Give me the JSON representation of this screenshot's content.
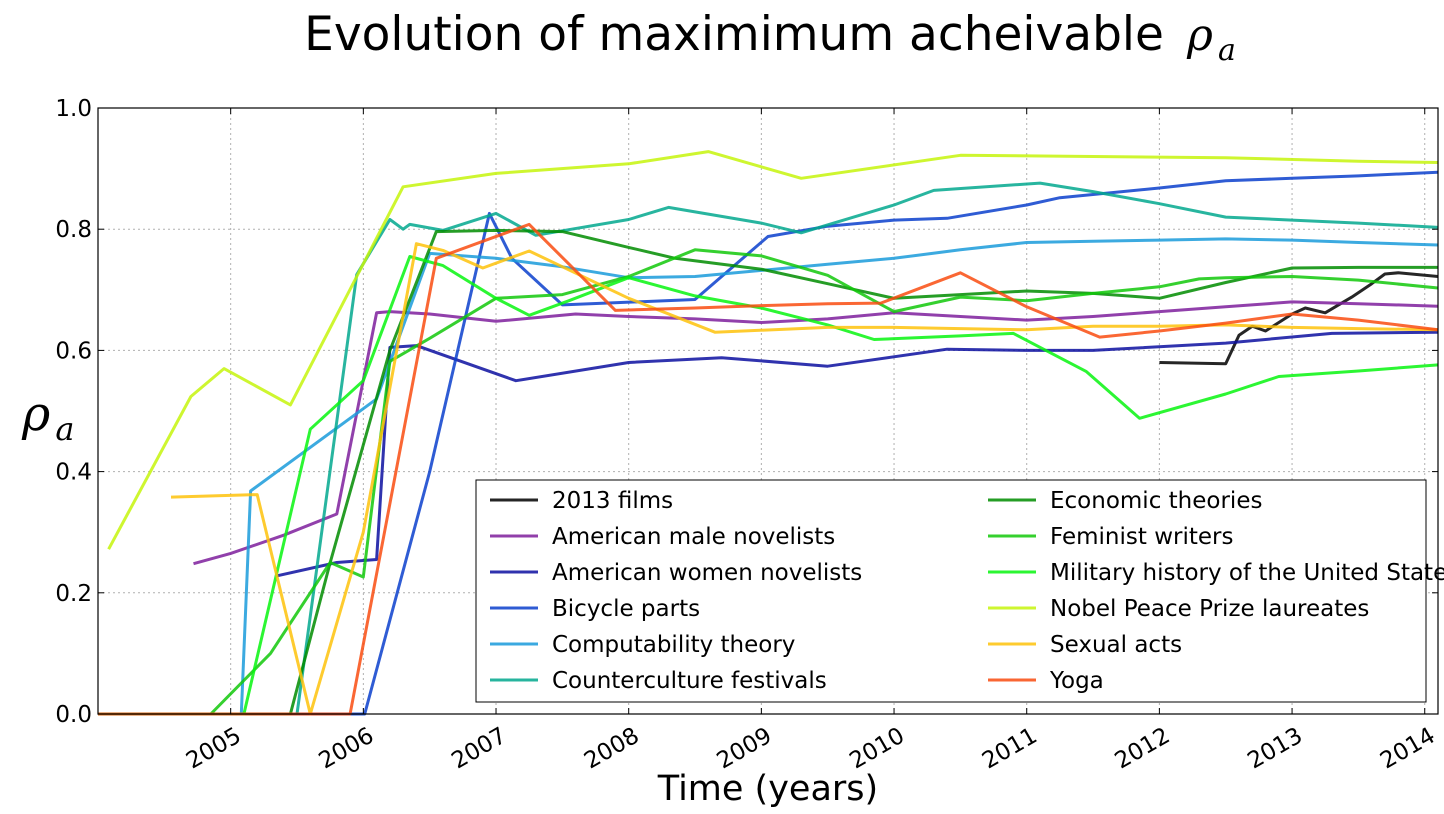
{
  "chart_data": {
    "type": "line",
    "title": "Evolution of maximimum acheivable",
    "title_symbol": "ρ",
    "title_symbol_sub": "a",
    "xlabel": "Time (years)",
    "ylabel_symbol": "ρ",
    "ylabel_symbol_sub": "a",
    "xlim": [
      2004.0,
      2014.1
    ],
    "ylim": [
      0.0,
      1.0
    ],
    "xticks": [
      2005,
      2006,
      2007,
      2008,
      2009,
      2010,
      2011,
      2012,
      2013,
      2014
    ],
    "xtick_labels": [
      "2005",
      "2006",
      "2007",
      "2008",
      "2009",
      "2010",
      "2011",
      "2012",
      "2013",
      "2014"
    ],
    "yticks": [
      0.0,
      0.2,
      0.4,
      0.6,
      0.8,
      1.0
    ],
    "ytick_labels": [
      "0.0",
      "0.2",
      "0.4",
      "0.6",
      "0.8",
      "1.0"
    ],
    "grid": true,
    "legend_position": "bottom-right",
    "legend_columns": 2,
    "series": [
      {
        "name": "2013 films",
        "color": "#000000",
        "x": [
          2012.0,
          2012.5,
          2012.6,
          2012.7,
          2012.8,
          2013.0,
          2013.1,
          2013.25,
          2013.45,
          2013.6,
          2013.7,
          2013.8,
          2014.1
        ],
        "y": [
          0.58,
          0.578,
          0.625,
          0.64,
          0.632,
          0.66,
          0.67,
          0.662,
          0.688,
          0.71,
          0.726,
          0.728,
          0.722
        ]
      },
      {
        "name": "American male novelists",
        "color": "#7e1e9c",
        "x": [
          2004.72,
          2005.0,
          2005.4,
          2005.8,
          2006.1,
          2006.2,
          2006.5,
          2007.0,
          2007.6,
          2008.0,
          2008.5,
          2009.0,
          2009.5,
          2010.0,
          2010.5,
          2011.0,
          2011.5,
          2012.0,
          2012.5,
          2013.0,
          2013.5,
          2014.1
        ],
        "y": [
          0.248,
          0.265,
          0.295,
          0.33,
          0.662,
          0.664,
          0.66,
          0.648,
          0.66,
          0.656,
          0.652,
          0.646,
          0.652,
          0.662,
          0.656,
          0.65,
          0.656,
          0.664,
          0.672,
          0.68,
          0.677,
          0.673
        ]
      },
      {
        "name": "American women novelists",
        "color": "#0c0fa0",
        "x": [
          2005.35,
          2005.8,
          2006.1,
          2006.2,
          2006.4,
          2007.15,
          2008.0,
          2008.7,
          2009.5,
          2010.4,
          2011.0,
          2011.5,
          2012.5,
          2013.3,
          2014.1
        ],
        "y": [
          0.228,
          0.25,
          0.255,
          0.605,
          0.608,
          0.55,
          0.58,
          0.588,
          0.574,
          0.602,
          0.6,
          0.6,
          0.612,
          0.628,
          0.63
        ]
      },
      {
        "name": "Bicycle parts",
        "color": "#0b3fcc",
        "x": [
          2004.0,
          2005.0,
          2006.01,
          2006.5,
          2006.95,
          2007.12,
          2007.5,
          2008.5,
          2009.05,
          2009.5,
          2010.0,
          2010.4,
          2011.0,
          2011.25,
          2012.0,
          2012.5,
          2013.0,
          2013.5,
          2014.1
        ],
        "y": [
          0.0,
          0.0,
          0.0,
          0.4,
          0.826,
          0.752,
          0.675,
          0.684,
          0.788,
          0.805,
          0.815,
          0.818,
          0.84,
          0.852,
          0.868,
          0.88,
          0.884,
          0.888,
          0.894
        ]
      },
      {
        "name": "Computability theory",
        "color": "#1a9bdb",
        "x": [
          2005.08,
          2005.15,
          2006.1,
          2006.5,
          2007.0,
          2007.5,
          2008.0,
          2008.5,
          2009.0,
          2009.5,
          2010.0,
          2010.5,
          2011.0,
          2011.5,
          2012.0,
          2012.5,
          2013.0,
          2013.5,
          2014.1
        ],
        "y": [
          0.0,
          0.368,
          0.52,
          0.76,
          0.752,
          0.738,
          0.72,
          0.722,
          0.732,
          0.742,
          0.752,
          0.766,
          0.778,
          0.78,
          0.782,
          0.784,
          0.782,
          0.778,
          0.774
        ]
      },
      {
        "name": "Counterculture festivals",
        "color": "#02a88e",
        "x": [
          2005.5,
          2005.95,
          2006.2,
          2006.3,
          2006.35,
          2006.6,
          2007.0,
          2007.3,
          2008.0,
          2008.3,
          2009.0,
          2009.3,
          2010.0,
          2010.3,
          2011.1,
          2011.5,
          2012.0,
          2012.5,
          2013.0,
          2013.5,
          2014.1
        ],
        "y": [
          0.0,
          0.725,
          0.816,
          0.8,
          0.808,
          0.798,
          0.826,
          0.79,
          0.816,
          0.836,
          0.81,
          0.794,
          0.84,
          0.864,
          0.876,
          0.862,
          0.842,
          0.82,
          0.815,
          0.81,
          0.803
        ]
      },
      {
        "name": "Economic theories",
        "color": "#008c00",
        "x": [
          2004.0,
          2005.45,
          2005.75,
          2006.2,
          2006.55,
          2007.0,
          2007.5,
          2008.0,
          2008.35,
          2009.0,
          2009.5,
          2010.0,
          2010.5,
          2011.0,
          2011.5,
          2012.0,
          2012.5,
          2013.0,
          2013.5,
          2014.1
        ],
        "y": [
          0.0,
          0.0,
          0.25,
          0.6,
          0.796,
          0.798,
          0.796,
          0.77,
          0.752,
          0.734,
          0.71,
          0.686,
          0.692,
          0.698,
          0.694,
          0.686,
          0.712,
          0.736,
          0.737,
          0.737
        ]
      },
      {
        "name": "Feminist writers",
        "color": "#12c80a",
        "x": [
          2004.0,
          2004.85,
          2005.3,
          2005.75,
          2006.0,
          2006.2,
          2006.5,
          2007.0,
          2007.5,
          2008.0,
          2008.5,
          2009.0,
          2009.5,
          2010.0,
          2010.5,
          2011.0,
          2011.5,
          2012.0,
          2012.3,
          2012.5,
          2013.0,
          2013.5,
          2014.1
        ],
        "y": [
          0.0,
          0.0,
          0.1,
          0.25,
          0.226,
          0.582,
          0.62,
          0.686,
          0.692,
          0.722,
          0.766,
          0.756,
          0.724,
          0.664,
          0.688,
          0.682,
          0.694,
          0.705,
          0.718,
          0.72,
          0.722,
          0.716,
          0.703
        ]
      },
      {
        "name": "Military history of the United States",
        "color": "#07f50f",
        "x": [
          2004.0,
          2005.1,
          2005.6,
          2006.0,
          2006.35,
          2006.6,
          2007.0,
          2007.25,
          2007.55,
          2008.0,
          2008.5,
          2009.0,
          2009.5,
          2009.85,
          2010.5,
          2010.9,
          2011.45,
          2011.85,
          2012.5,
          2012.9,
          2013.5,
          2014.1
        ],
        "y": [
          0.0,
          0.0,
          0.47,
          0.55,
          0.755,
          0.74,
          0.686,
          0.658,
          0.682,
          0.72,
          0.69,
          0.67,
          0.642,
          0.618,
          0.624,
          0.628,
          0.565,
          0.488,
          0.528,
          0.557,
          0.566,
          0.576
        ]
      },
      {
        "name": "Nobel Peace Prize laureates",
        "color": "#c6f50c",
        "x": [
          2004.08,
          2004.7,
          2004.95,
          2005.45,
          2006.3,
          2007.0,
          2008.0,
          2008.6,
          2009.3,
          2010.5,
          2011.5,
          2012.5,
          2013.5,
          2014.1
        ],
        "y": [
          0.272,
          0.524,
          0.57,
          0.51,
          0.87,
          0.892,
          0.908,
          0.928,
          0.884,
          0.922,
          0.92,
          0.918,
          0.912,
          0.91
        ]
      },
      {
        "name": "Sexual acts",
        "color": "#fec20b",
        "x": [
          2004.55,
          2005.2,
          2005.6,
          2006.0,
          2006.4,
          2006.6,
          2006.9,
          2007.25,
          2008.0,
          2008.65,
          2009.5,
          2010.0,
          2010.5,
          2011.0,
          2011.5,
          2012.0,
          2012.5,
          2013.0,
          2013.5,
          2014.1
        ],
        "y": [
          0.358,
          0.362,
          0.0,
          0.3,
          0.776,
          0.765,
          0.736,
          0.764,
          0.686,
          0.63,
          0.638,
          0.638,
          0.636,
          0.634,
          0.64,
          0.64,
          0.642,
          0.638,
          0.636,
          0.634
        ]
      },
      {
        "name": "Yoga",
        "color": "#f94c10",
        "x": [
          2004.0,
          2005.9,
          2006.55,
          2007.25,
          2007.9,
          2008.5,
          2009.0,
          2009.5,
          2009.9,
          2010.5,
          2011.0,
          2011.55,
          2012.0,
          2012.5,
          2013.0,
          2013.5,
          2014.1
        ],
        "y": [
          0.0,
          0.0,
          0.752,
          0.808,
          0.666,
          0.67,
          0.674,
          0.677,
          0.678,
          0.728,
          0.672,
          0.622,
          0.632,
          0.645,
          0.66,
          0.65,
          0.634
        ]
      }
    ]
  }
}
